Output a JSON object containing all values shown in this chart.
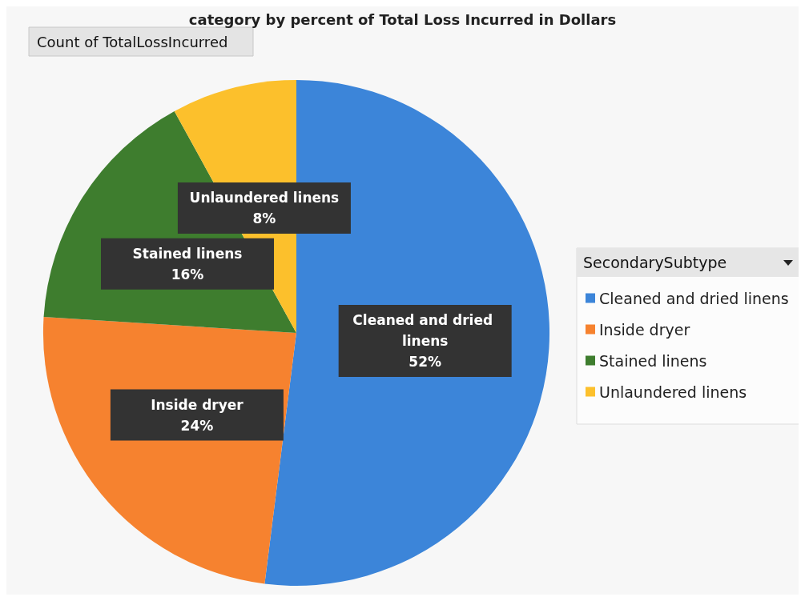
{
  "chart_data": {
    "type": "pie",
    "title": "category by percent of Total Loss Incurred in Dollars",
    "annotations": [
      "Count of TotalLossIncurred"
    ],
    "legend_title": "SecondarySubtype",
    "categories": [
      "Cleaned and dried linens",
      "Inside dryer",
      "Stained linens",
      "Unlaundered linens"
    ],
    "values": [
      52,
      24,
      16,
      8
    ],
    "colors": [
      "#3c85d9",
      "#f6822f",
      "#3e7d2e",
      "#fcc02c"
    ],
    "value_labels": [
      "52%",
      "24%",
      "16%",
      "8%"
    ],
    "legend": "right"
  }
}
